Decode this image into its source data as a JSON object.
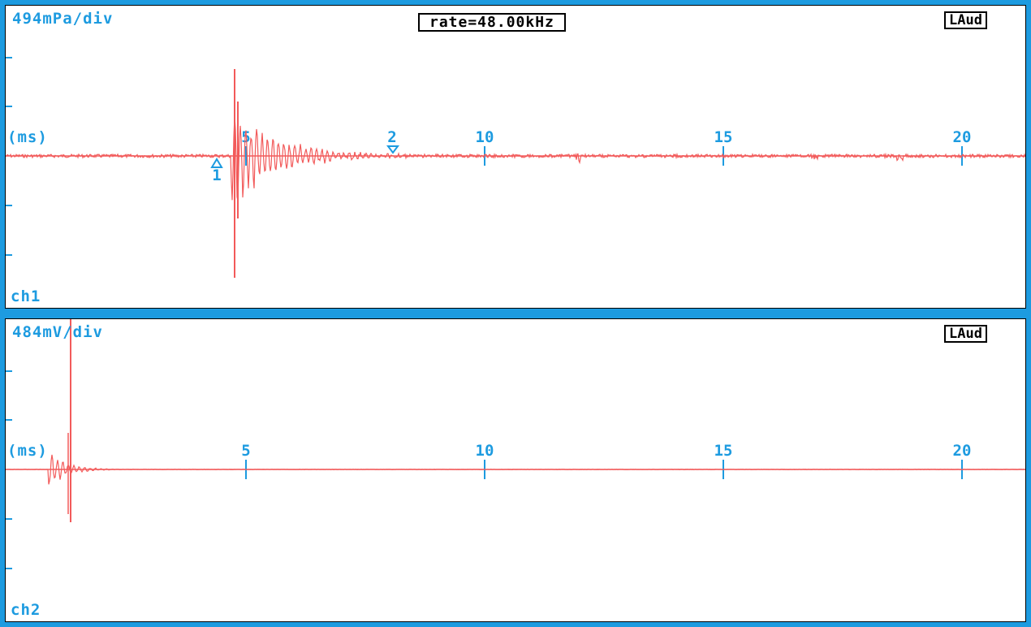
{
  "top_panel": {
    "scale_label": "494mPa/div",
    "rate_label": "rate=48.00kHz",
    "mode_badge": "LAud",
    "units_label": "(ms)",
    "channel_label": "ch1",
    "time_ticks": [
      "5",
      "10",
      "15",
      "20"
    ],
    "cursor_1": "1",
    "cursor_2": "2"
  },
  "bottom_panel": {
    "scale_label": "484mV/div",
    "mode_badge": "LAud",
    "units_label": "(ms)",
    "channel_label": "ch2",
    "time_ticks": [
      "5",
      "10",
      "15",
      "20"
    ]
  },
  "colors": {
    "frame": "#1d9be0",
    "trace": "#f25a5a",
    "background": "#ffffff"
  }
}
